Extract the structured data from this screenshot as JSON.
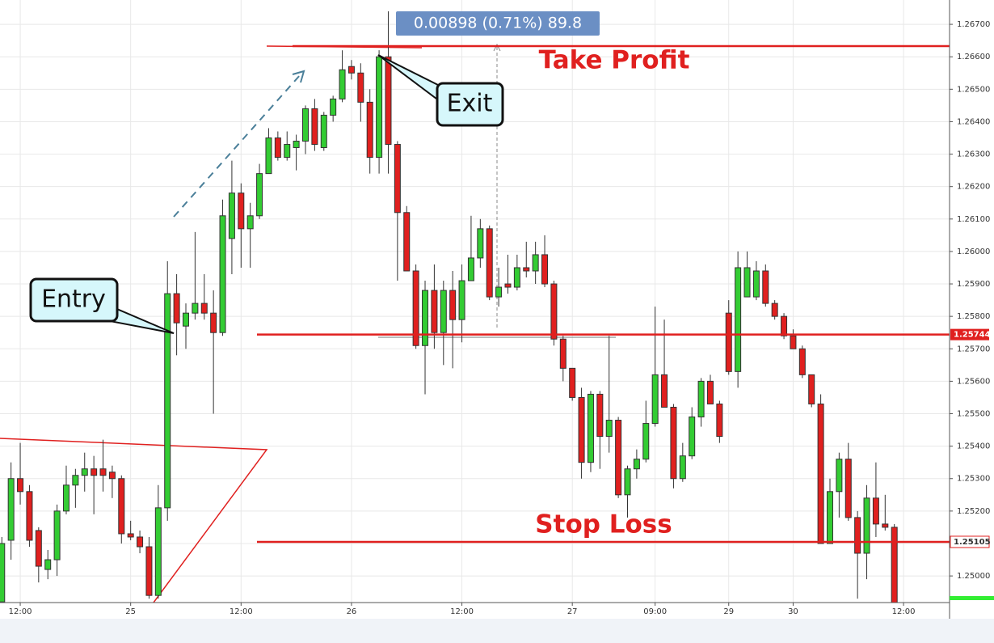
{
  "chart_data": {
    "type": "candlestick",
    "open": [
      1.2492,
      1.2511,
      1.253,
      1.2526,
      1.2514,
      1.2502,
      1.2505,
      1.252,
      1.2528,
      1.2531,
      1.2533,
      1.2533,
      1.2532,
      1.253,
      1.2513,
      1.2512,
      1.2509,
      1.2494,
      1.2521,
      1.2587,
      1.2577,
      1.2581,
      1.2584,
      1.2581,
      1.2575,
      1.2604,
      1.2618,
      1.2607,
      1.2611,
      1.2624,
      1.2635,
      1.2629,
      1.2632,
      1.2634,
      1.2644,
      1.2632,
      1.2642,
      1.2647,
      1.2657,
      1.2655,
      1.2646,
      1.2629,
      1.266,
      1.2633,
      1.2612,
      1.2594,
      1.2571,
      1.2588,
      1.2575,
      1.2588,
      1.2579,
      1.2591,
      1.2598,
      1.2607,
      1.2586,
      1.259,
      1.2589,
      1.2595,
      1.2594,
      1.2599,
      1.259,
      1.2573,
      1.2564,
      1.2555,
      1.2535,
      1.2556,
      1.2543,
      1.2548,
      1.2525,
      1.2533,
      1.2536,
      1.2547,
      1.2562,
      1.2552,
      1.253,
      1.2537,
      1.2549,
      1.256,
      1.2553,
      1.2581,
      1.2563,
      1.2586,
      1.2586,
      1.2594,
      1.2584,
      1.258,
      1.2574,
      1.257,
      1.2562,
      1.2553,
      1.251,
      1.2526,
      1.2536,
      1.2518,
      1.2507,
      1.2524,
      1.2516,
      1.2515
    ],
    "high": [
      1.2512,
      1.2535,
      1.2541,
      1.2528,
      1.2515,
      1.2508,
      1.2522,
      1.2534,
      1.2533,
      1.2538,
      1.2537,
      1.2542,
      1.2534,
      1.2531,
      1.2517,
      1.2514,
      1.2512,
      1.2528,
      1.2597,
      1.2593,
      1.2584,
      1.2606,
      1.2593,
      1.2588,
      1.2616,
      1.2628,
      1.2621,
      1.2615,
      1.2627,
      1.2638,
      1.2637,
      1.2637,
      1.2636,
      1.2645,
      1.2647,
      1.2643,
      1.2648,
      1.2662,
      1.2659,
      1.2658,
      1.265,
      1.2662,
      1.2674,
      1.2634,
      1.2614,
      1.2596,
      1.2591,
      1.2596,
      1.2591,
      1.2594,
      1.2596,
      1.2611,
      1.261,
      1.2608,
      1.2595,
      1.2599,
      1.2599,
      1.2603,
      1.2603,
      1.2605,
      1.2591,
      1.2574,
      1.2564,
      1.2558,
      1.2557,
      1.2557,
      1.2574,
      1.2549,
      1.2534,
      1.2539,
      1.2554,
      1.2583,
      1.2579,
      1.2553,
      1.2541,
      1.2552,
      1.2561,
      1.2562,
      1.2554,
      1.2585,
      1.26,
      1.26,
      1.2597,
      1.2596,
      1.2585,
      1.2581,
      1.2576,
      1.2571,
      1.2562,
      1.2556,
      1.253,
      1.2538,
      1.2541,
      1.252,
      1.2528,
      1.2535,
      1.2525,
      1.2516
    ],
    "low": [
      1.249,
      1.2505,
      1.2522,
      1.2509,
      1.2498,
      1.2499,
      1.25,
      1.2519,
      1.2521,
      1.2526,
      1.2519,
      1.2526,
      1.2524,
      1.251,
      1.2511,
      1.2507,
      1.2493,
      1.2493,
      1.2517,
      1.2568,
      1.257,
      1.2579,
      1.2579,
      1.255,
      1.2574,
      1.2593,
      1.2595,
      1.2595,
      1.261,
      1.2624,
      1.2628,
      1.2628,
      1.2625,
      1.263,
      1.2631,
      1.2631,
      1.264,
      1.2646,
      1.2653,
      1.264,
      1.2624,
      1.2624,
      1.2624,
      1.2591,
      1.2594,
      1.257,
      1.2556,
      1.257,
      1.2565,
      1.2564,
      1.2572,
      1.2591,
      1.2595,
      1.2585,
      1.2583,
      1.2587,
      1.2588,
      1.2592,
      1.259,
      1.2589,
      1.2571,
      1.256,
      1.2554,
      1.253,
      1.2532,
      1.2533,
      1.2538,
      1.2524,
      1.2518,
      1.253,
      1.2535,
      1.2546,
      1.2552,
      1.2527,
      1.2529,
      1.2536,
      1.2546,
      1.2553,
      1.2541,
      1.2562,
      1.2558,
      1.2586,
      1.2585,
      1.2583,
      1.2579,
      1.2573,
      1.257,
      1.2561,
      1.2552,
      1.251,
      1.251,
      1.2518,
      1.2517,
      1.2493,
      1.2499,
      1.2512,
      1.2514,
      1.249
    ],
    "close": [
      1.251,
      1.253,
      1.2526,
      1.2511,
      1.2503,
      1.2505,
      1.252,
      1.2528,
      1.2531,
      1.2533,
      1.2531,
      1.2531,
      1.253,
      1.2513,
      1.2512,
      1.2509,
      1.2494,
      1.2521,
      1.2587,
      1.2578,
      1.2581,
      1.2584,
      1.2581,
      1.2575,
      1.2611,
      1.2618,
      1.2607,
      1.2611,
      1.2624,
      1.2635,
      1.2629,
      1.2633,
      1.2634,
      1.2644,
      1.2633,
      1.2642,
      1.2647,
      1.2656,
      1.2655,
      1.2646,
      1.2629,
      1.266,
      1.2633,
      1.2612,
      1.2594,
      1.2571,
      1.2588,
      1.2575,
      1.2588,
      1.2579,
      1.2591,
      1.2598,
      1.2607,
      1.2586,
      1.2589,
      1.2589,
      1.2595,
      1.2594,
      1.2599,
      1.259,
      1.2573,
      1.2564,
      1.2555,
      1.2535,
      1.2556,
      1.2543,
      1.2548,
      1.2525,
      1.2533,
      1.2536,
      1.2547,
      1.2562,
      1.2552,
      1.253,
      1.2537,
      1.2549,
      1.256,
      1.2553,
      1.2543,
      1.2563,
      1.2595,
      1.2595,
      1.2594,
      1.2584,
      1.258,
      1.2574,
      1.257,
      1.2562,
      1.2553,
      1.251,
      1.2526,
      1.2536,
      1.2518,
      1.2507,
      1.2524,
      1.2516,
      1.2515,
      1.2491
    ],
    "up_color": "#33cc33",
    "down_color": "#e0201f",
    "xlim": [
      -0.2,
      103
    ],
    "xticks": [
      {
        "value": 2,
        "label": "12:00"
      },
      {
        "value": 14,
        "label": "25"
      },
      {
        "value": 26,
        "label": "12:00"
      },
      {
        "value": 38,
        "label": "26"
      },
      {
        "value": 50,
        "label": "12:00"
      },
      {
        "value": 62,
        "label": "27"
      },
      {
        "value": 71,
        "label": "09:00"
      },
      {
        "value": 79,
        "label": "29"
      },
      {
        "value": 86,
        "label": "30"
      },
      {
        "value": 98,
        "label": "12:00"
      }
    ],
    "ylim": [
      1.24918,
      1.26775
    ],
    "yticks": [
      {
        "value": 1.267,
        "label": "1.26700"
      },
      {
        "value": 1.266,
        "label": "1.26600"
      },
      {
        "value": 1.265,
        "label": "1.26500"
      },
      {
        "value": 1.264,
        "label": "1.26400"
      },
      {
        "value": 1.263,
        "label": "1.26300"
      },
      {
        "value": 1.262,
        "label": "1.26200"
      },
      {
        "value": 1.261,
        "label": "1.26100"
      },
      {
        "value": 1.26,
        "label": "1.26000"
      },
      {
        "value": 1.259,
        "label": "1.25900"
      },
      {
        "value": 1.258,
        "label": "1.25800"
      },
      {
        "value": 1.257,
        "label": "1.25700"
      },
      {
        "value": 1.256,
        "label": "1.25600"
      },
      {
        "value": 1.255,
        "label": "1.25500"
      },
      {
        "value": 1.254,
        "label": "1.25400"
      },
      {
        "value": 1.253,
        "label": "1.25300"
      },
      {
        "value": 1.252,
        "label": "1.25200"
      },
      {
        "value": 1.251,
        "label": "1.25100"
      },
      {
        "value": 1.25,
        "label": "1.25000"
      }
    ],
    "grid": true,
    "take_profit": {
      "label": "Take Profit",
      "value": 1.26633
    },
    "entry_level": {
      "value": 1.25744,
      "label": "1.25744"
    },
    "stop_loss": {
      "label": "Stop Loss",
      "value": 1.25105,
      "price_label": "1.25105"
    },
    "entry_label": "Entry",
    "exit_label": "Exit",
    "measure_label": "0.00898 (0.71%) 89.8"
  }
}
